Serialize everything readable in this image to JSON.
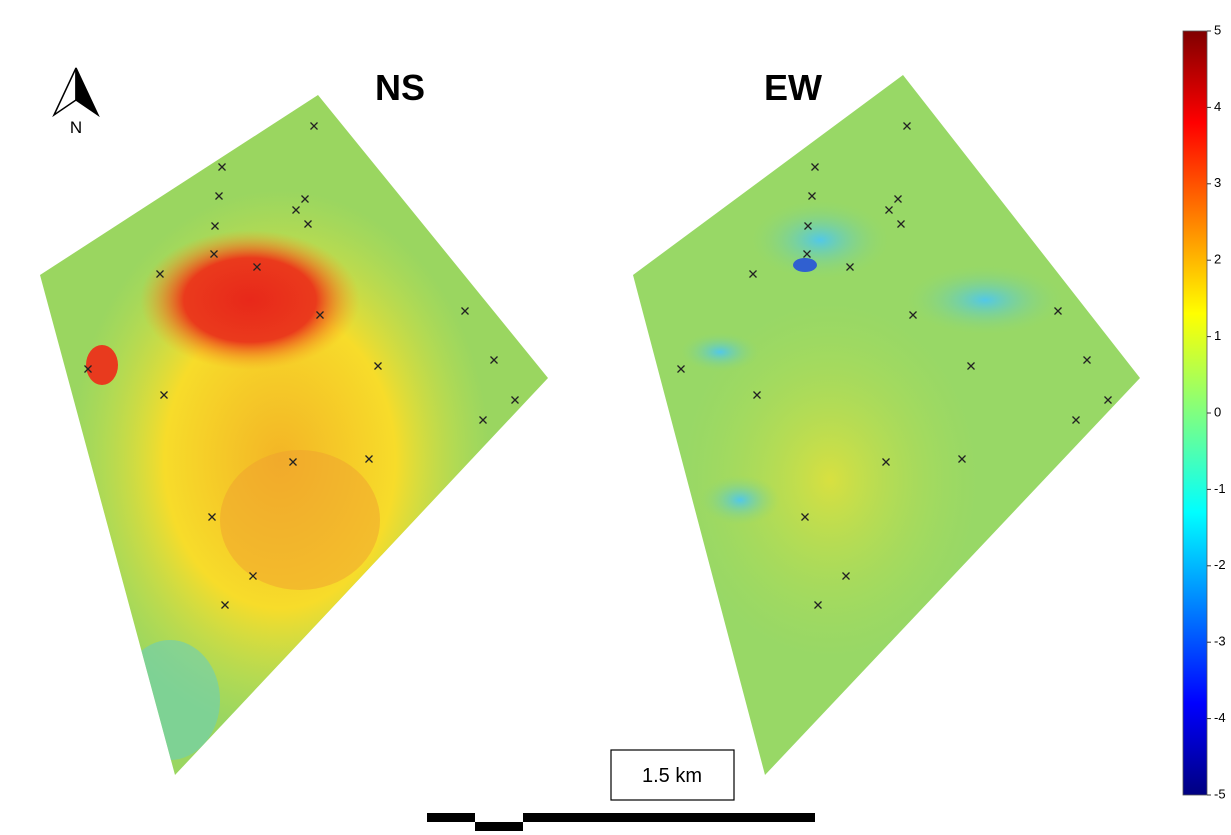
{
  "panels": [
    {
      "title": "NS"
    },
    {
      "title": "EW"
    }
  ],
  "north_label": "N",
  "scale_bar": {
    "label": "1.5 km"
  },
  "colorbar": {
    "lim": [
      -5,
      5
    ],
    "ticks": [
      5,
      4,
      3,
      2,
      1,
      0,
      -1,
      -2,
      -3,
      -4,
      -5
    ]
  }
}
